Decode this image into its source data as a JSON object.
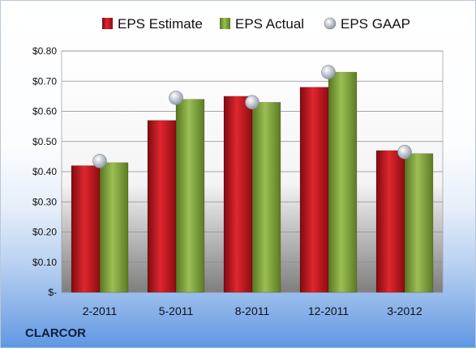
{
  "chart_data": {
    "type": "bar",
    "categories": [
      "2-2011",
      "5-2011",
      "8-2011",
      "12-2011",
      "3-2012"
    ],
    "series": [
      {
        "name": "EPS Estimate",
        "values": [
          0.42,
          0.57,
          0.65,
          0.68,
          0.47
        ],
        "color": "#c0141e"
      },
      {
        "name": "EPS Actual",
        "values": [
          0.43,
          0.64,
          0.63,
          0.73,
          0.46
        ],
        "color": "#7fa33a"
      },
      {
        "name": "EPS GAAP",
        "values": [
          0.435,
          0.645,
          0.63,
          0.73,
          0.465
        ],
        "color": "#b8bfc8",
        "marker": "sphere"
      }
    ],
    "ylim": [
      0,
      0.8
    ],
    "y_ticks": [
      0,
      0.1,
      0.2,
      0.3,
      0.4,
      0.5,
      0.6,
      0.7,
      0.8
    ],
    "y_tick_labels": [
      "$-",
      "$0.10",
      "$0.20",
      "$0.30",
      "$0.40",
      "$0.50",
      "$0.60",
      "$0.70",
      "$0.80"
    ],
    "grid": true,
    "legend_position": "top"
  },
  "footer": {
    "company": "CLARCOR"
  }
}
